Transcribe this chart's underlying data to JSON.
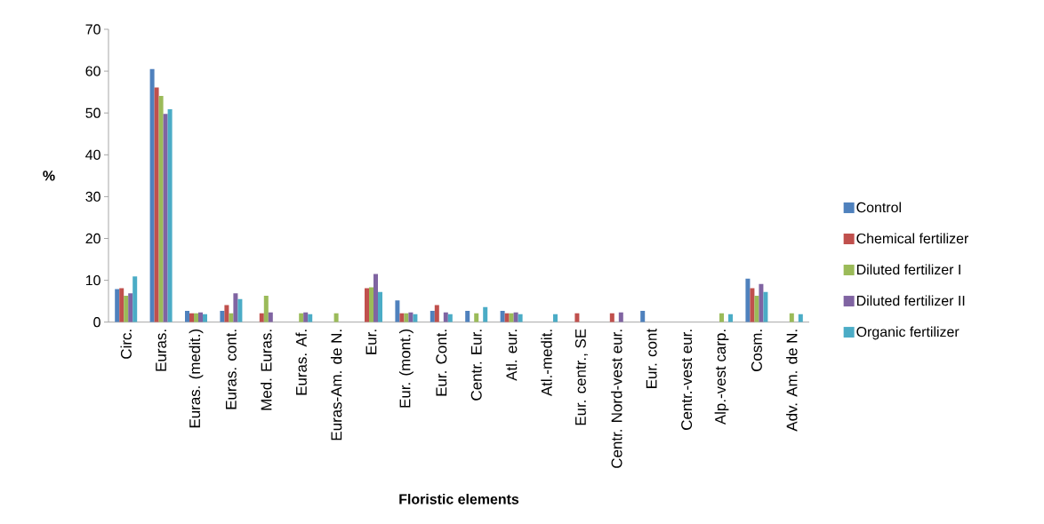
{
  "chart_data": {
    "type": "bar",
    "xlabel": "Floristic elements",
    "ylabel": "%",
    "categories": [
      "Circ.",
      "Euras.",
      "Euras. (medit.)",
      "Euras. cont.",
      "Med. Euras.",
      "Euras. Af.",
      "Euras-Am. de N.",
      "Eur.",
      "Eur. (mont.)",
      "Eur. Cont.",
      "Centr. Eur.",
      "Atl. eur.",
      "Atl.-medit.",
      "Eur. centr., SE",
      "Centr. Nord-vest eur.",
      "Eur. cont",
      "Centr.-vest eur.",
      "Alp.-vest carp.",
      "Cosm.",
      "Adv. Am. de N."
    ],
    "series": [
      {
        "name": "Control",
        "color": "#4f81bd",
        "values": [
          7.9,
          60.5,
          2.7,
          2.7,
          null,
          null,
          null,
          null,
          5.2,
          2.7,
          2.7,
          2.7,
          null,
          null,
          null,
          2.7,
          null,
          null,
          10.4,
          null
        ]
      },
      {
        "name": "Chemical fertilizer",
        "color": "#c0504d",
        "values": [
          8.1,
          56.1,
          2.1,
          4.1,
          2.1,
          null,
          null,
          8.1,
          2.1,
          4.1,
          null,
          2.1,
          null,
          2.1,
          2.1,
          null,
          null,
          null,
          8.1,
          null
        ]
      },
      {
        "name": "Diluted fertilizer  I",
        "color": "#9bbb59",
        "values": [
          6.3,
          54.1,
          2.1,
          2.1,
          6.3,
          2.1,
          2.1,
          8.3,
          2.1,
          null,
          2.1,
          2.1,
          null,
          null,
          null,
          null,
          null,
          2.1,
          6.3,
          2.1
        ]
      },
      {
        "name": "Diluted fertilizer  II",
        "color": "#8064a2",
        "values": [
          6.9,
          49.8,
          2.3,
          6.9,
          2.3,
          2.3,
          null,
          11.5,
          2.3,
          2.3,
          null,
          2.3,
          null,
          null,
          2.3,
          null,
          null,
          null,
          9.1,
          null
        ]
      },
      {
        "name": "Organic fertilizer",
        "color": "#4bacc6",
        "values": [
          10.9,
          50.9,
          1.9,
          5.5,
          null,
          1.9,
          null,
          7.2,
          1.9,
          1.9,
          3.6,
          1.9,
          1.9,
          null,
          null,
          null,
          null,
          1.9,
          7.2,
          1.9
        ]
      }
    ],
    "ylim": [
      0,
      70
    ],
    "yticks": [
      0,
      10,
      20,
      30,
      40,
      50,
      60,
      70
    ],
    "legend": "right"
  }
}
